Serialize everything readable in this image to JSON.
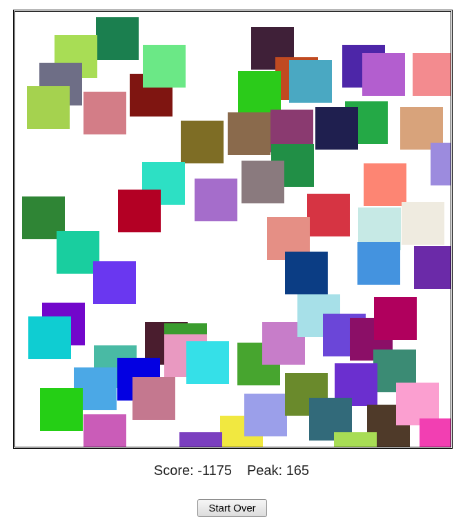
{
  "game": {
    "score_label": "Score:",
    "score_value": "-1175",
    "peak_label": "Peak:",
    "peak_value": "165",
    "restart_label": "Start Over",
    "tile_colors": [
      "#1b7f4f",
      "#a8dd55",
      "#6e6e86",
      "#a5d24f",
      "#d37d87",
      "#7f1511",
      "#6be886",
      "#3f2038",
      "#c04a21",
      "#2bcb1a",
      "#4aa8c2",
      "#4d26a8",
      "#b35ecf",
      "#f38b8f",
      "#24a946",
      "#d8a37b",
      "#1f1f4f",
      "#8a3a70",
      "#8a6a4c",
      "#7e6d25",
      "#218f46",
      "#8a7a7e",
      "#a56dcb",
      "#2de0c4",
      "#b30024",
      "#d63443",
      "#fd8573",
      "#9c8bde",
      "#2f8535",
      "#19ce9f",
      "#e58f85",
      "#c6e9e5",
      "#efebe0",
      "#0b3d84",
      "#4493df",
      "#6b2aa8",
      "#6a37f0",
      "#7207cb",
      "#0fcdd2",
      "#49baa4",
      "#4a1d2e",
      "#3a9c2e",
      "#e999c1",
      "#35e0e8",
      "#47a52f",
      "#c77dc9",
      "#a7e0e8",
      "#6b46d8",
      "#8b0f67",
      "#b0005d",
      "#3b8b74",
      "#6b2fcf",
      "#4ba8e6",
      "#0300e2",
      "#c4788f",
      "#25cf15",
      "#ca5cb8",
      "#f1e840",
      "#9b9fea",
      "#6a8a2c",
      "#326a7a",
      "#4f3a29",
      "#fb9fd0",
      "#a8dd55",
      "#f23fb2",
      "#7b3fbf"
    ]
  }
}
